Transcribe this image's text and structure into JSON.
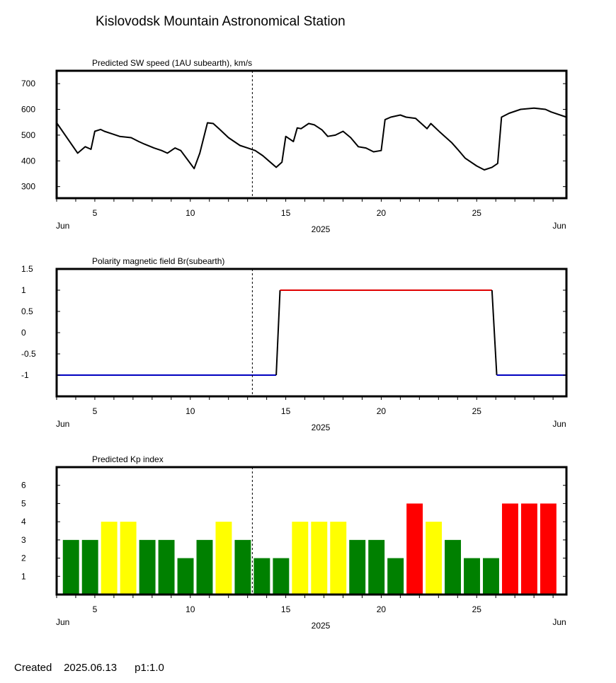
{
  "page": {
    "title": "Kislovodsk Mountain Astronomical Station",
    "footer_created": "Created",
    "footer_date": "2025.06.13",
    "footer_page": "p1:1.0"
  },
  "axis": {
    "x_range": [
      3.0,
      29.7
    ],
    "x_ticks": [
      5,
      10,
      15,
      20,
      25
    ],
    "x_minor_ticks": [
      3,
      4,
      5,
      6,
      7,
      8,
      9,
      10,
      11,
      12,
      13,
      14,
      15,
      16,
      17,
      18,
      19,
      20,
      21,
      22,
      23,
      24,
      25,
      26,
      27,
      28,
      29
    ],
    "month_left": "Jun",
    "month_right": "Jun",
    "year": "2025",
    "current_day": 13.25
  },
  "colors": {
    "frame": "#000000",
    "sw_line": "#000000",
    "polarity_negative": "#0000c0",
    "polarity_positive": "#e00000",
    "kp_quiet": "#008000",
    "kp_active": "#ffff00",
    "kp_storm": "#ff0000"
  },
  "chart_data": [
    {
      "type": "line",
      "title": "Predicted SW speed (1AU subearth), km/s",
      "ylim": [
        255,
        750
      ],
      "yticks": [
        300,
        400,
        500,
        600,
        700
      ],
      "series": [
        {
          "x": [
            3.0,
            4.1,
            4.5,
            4.8,
            5.0,
            5.3,
            5.5,
            5.9,
            6.3,
            6.9,
            7.3,
            7.6,
            8.1,
            8.5,
            8.8,
            9.2,
            9.5,
            9.8,
            10.2,
            10.5,
            10.9,
            11.2,
            11.5,
            12.0,
            12.6,
            13.0,
            13.4,
            13.8,
            14.5,
            14.8,
            15.0,
            15.4,
            15.6,
            15.8,
            16.2,
            16.5,
            16.9,
            17.2,
            17.6,
            18.0,
            18.4,
            18.8,
            19.2,
            19.6,
            20.0,
            20.2,
            20.5,
            21.0,
            21.3,
            21.8,
            22.4,
            22.6,
            23.1,
            23.7,
            24.0,
            24.4,
            25.0,
            25.4,
            25.8,
            26.1,
            26.3,
            26.7,
            27.3,
            28.0,
            28.6,
            28.9,
            29.7
          ],
          "values": [
            548,
            430,
            455,
            445,
            515,
            522,
            515,
            505,
            495,
            490,
            475,
            465,
            450,
            440,
            430,
            450,
            440,
            410,
            370,
            430,
            548,
            545,
            525,
            490,
            460,
            450,
            440,
            420,
            375,
            395,
            495,
            475,
            528,
            525,
            545,
            540,
            520,
            495,
            500,
            515,
            490,
            455,
            450,
            435,
            440,
            560,
            570,
            578,
            570,
            565,
            525,
            545,
            510,
            470,
            445,
            410,
            380,
            365,
            375,
            390,
            570,
            585,
            600,
            605,
            600,
            590,
            570
          ]
        }
      ]
    },
    {
      "type": "line",
      "title": "Polarity magnetic field  Br(subearth)",
      "ylim": [
        -1.5,
        1.5
      ],
      "yticks": [
        1.5,
        1,
        0.5,
        0,
        -0.5,
        -1
      ],
      "ytick_labels": [
        "1.5",
        "1",
        "0.5",
        "0",
        "-0.5",
        "-1"
      ],
      "series": [
        {
          "x": [
            3.0,
            14.5,
            14.7,
            25.8,
            26.05,
            29.7
          ],
          "values": [
            -1,
            -1,
            1,
            1,
            -1,
            -1
          ]
        }
      ]
    },
    {
      "type": "bar",
      "title": "Predicted Kp index",
      "ylim": [
        0,
        7
      ],
      "yticks": [
        1,
        2,
        3,
        4,
        5,
        6
      ],
      "bar_width_days": 0.85,
      "x": [
        3.75,
        4.75,
        5.75,
        6.75,
        7.75,
        8.75,
        9.75,
        10.75,
        11.75,
        12.75,
        13.75,
        14.75,
        15.75,
        16.75,
        17.75,
        18.75,
        19.75,
        20.75,
        21.75,
        22.75,
        23.75,
        24.75,
        25.75,
        26.75,
        27.75,
        28.75
      ],
      "values": [
        3,
        3,
        4,
        4,
        3,
        3,
        2,
        3,
        4,
        3,
        2,
        2,
        4,
        4,
        4,
        3,
        3,
        2,
        5,
        4,
        3,
        2,
        2,
        5,
        5,
        5
      ]
    }
  ]
}
